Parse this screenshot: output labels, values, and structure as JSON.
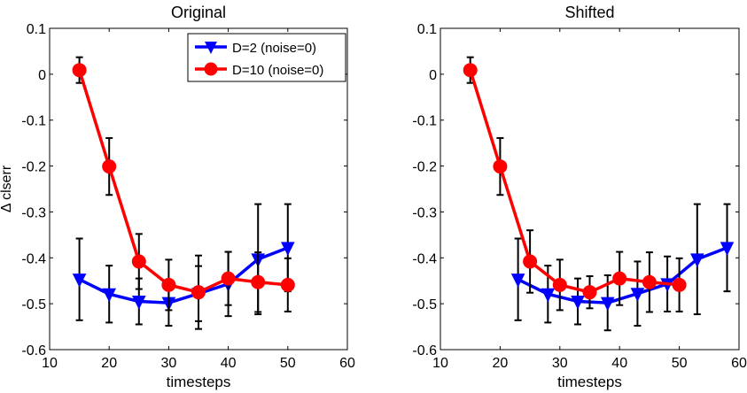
{
  "chart_data": [
    {
      "type": "line",
      "title": "Original",
      "xlabel": "timesteps",
      "ylabel": "Δ clserr",
      "xlim": [
        10,
        60
      ],
      "ylim": [
        -0.6,
        0.1
      ],
      "xticks": [
        10,
        20,
        30,
        40,
        50,
        60
      ],
      "yticks": [
        -0.6,
        -0.5,
        -0.4,
        -0.3,
        -0.2,
        -0.1,
        0,
        0.1
      ],
      "grid": false,
      "legend": "top-right",
      "series": [
        {
          "name": "D=2 (noise=0)",
          "color": "#0000ff",
          "marker": "triangle-down",
          "x": [
            15,
            20,
            25,
            30,
            35,
            40,
            45,
            50
          ],
          "y": [
            -0.447,
            -0.479,
            -0.495,
            -0.498,
            -0.478,
            -0.457,
            -0.403,
            -0.378
          ],
          "err": [
            0.089,
            0.062,
            0.05,
            0.05,
            0.06,
            0.07,
            0.12,
            0.095
          ]
        },
        {
          "name": "D=10 (noise=0)",
          "color": "#ff0000",
          "marker": "circle",
          "x": [
            15,
            20,
            25,
            30,
            35,
            40,
            45,
            50
          ],
          "y": [
            0.009,
            -0.201,
            -0.408,
            -0.459,
            -0.475,
            -0.445,
            -0.453,
            -0.459
          ],
          "err": [
            0.028,
            0.062,
            0.06,
            0.055,
            0.08,
            0.058,
            0.065,
            0.058
          ]
        }
      ]
    },
    {
      "type": "line",
      "title": "Shifted",
      "xlabel": "timesteps",
      "ylabel": "",
      "xlim": [
        10,
        60
      ],
      "ylim": [
        -0.6,
        0.1
      ],
      "xticks": [
        10,
        20,
        30,
        40,
        50,
        60
      ],
      "yticks": [
        -0.6,
        -0.5,
        -0.4,
        -0.3,
        -0.2,
        -0.1,
        0,
        0.1
      ],
      "grid": false,
      "legend": "none",
      "series": [
        {
          "name": "D=2 (noise=0)",
          "color": "#0000ff",
          "marker": "triangle-down",
          "x": [
            23,
            28,
            33,
            38,
            43,
            48,
            53,
            58
          ],
          "y": [
            -0.447,
            -0.479,
            -0.495,
            -0.498,
            -0.478,
            -0.457,
            -0.403,
            -0.378
          ],
          "err": [
            0.089,
            0.062,
            0.05,
            0.06,
            0.07,
            0.06,
            0.12,
            0.095
          ]
        },
        {
          "name": "D=10 (noise=0)",
          "color": "#ff0000",
          "marker": "circle",
          "x": [
            15,
            20,
            25,
            30,
            35,
            40,
            45,
            50
          ],
          "y": [
            0.009,
            -0.201,
            -0.408,
            -0.459,
            -0.475,
            -0.445,
            -0.453,
            -0.459
          ],
          "err": [
            0.028,
            0.062,
            0.068,
            0.055,
            0.035,
            0.058,
            0.065,
            0.058
          ]
        }
      ]
    }
  ]
}
